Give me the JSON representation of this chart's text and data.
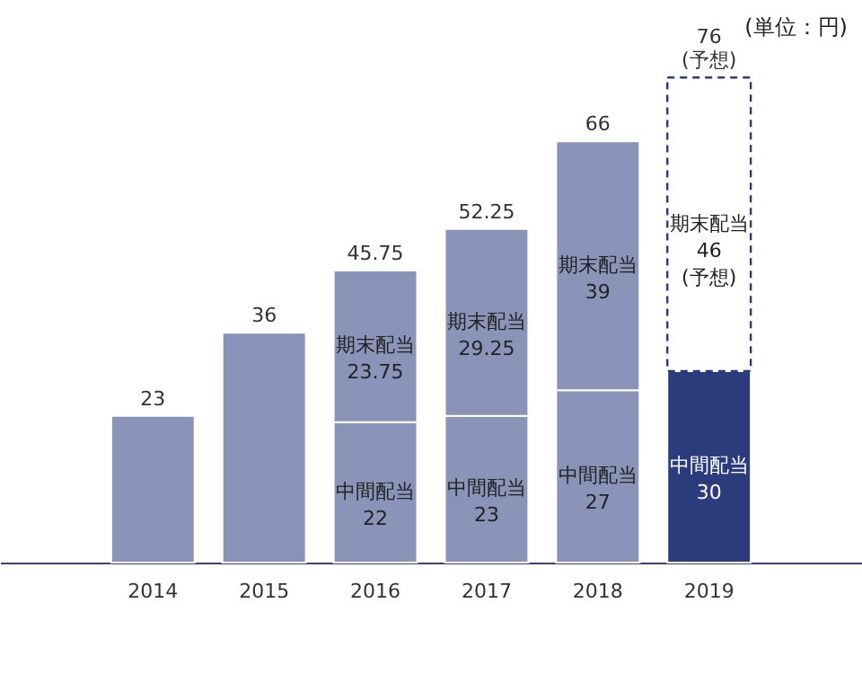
{
  "chart_data": {
    "type": "bar",
    "stacked": true,
    "categories": [
      "2014",
      "2015",
      "2016",
      "2017",
      "2018",
      "2019"
    ],
    "series": [
      {
        "colors": [
          "#8a93b8",
          "#8a93b8",
          "#8a93b8",
          "#8a93b8",
          "#8a93b8",
          "#2b3b7c"
        ],
        "values": [
          23,
          36,
          22,
          23,
          27,
          30
        ],
        "value_labels": [
          null,
          null,
          "中間配当\n22",
          "中間配当\n23",
          "中間配当\n27",
          "中間配当\n30"
        ]
      },
      {
        "color": "#8a93b8",
        "values": [
          null,
          null,
          23.75,
          29.25,
          39,
          null
        ],
        "value_labels": [
          null,
          null,
          "期末配当\n23.75",
          "期末配当\n29.25",
          "期末配当\n39",
          null
        ]
      },
      {
        "color": "#ffffff",
        "line_style": "dashed",
        "values": [
          null,
          null,
          null,
          null,
          null,
          46
        ],
        "value_labels": [
          null,
          null,
          null,
          null,
          null,
          "期末配当\n46\n(予想)"
        ]
      }
    ],
    "totals": [
      "23",
      "36",
      "45.75",
      "52.25",
      "66",
      "76\n(予想)"
    ],
    "annotations": [
      "(単位：円)"
    ]
  }
}
